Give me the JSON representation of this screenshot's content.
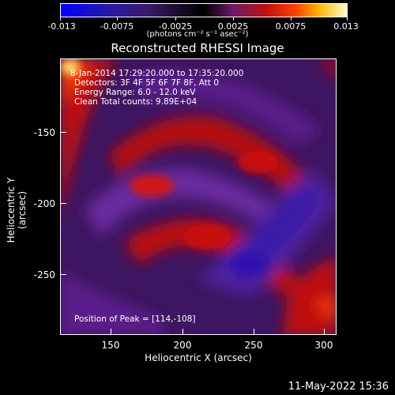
{
  "colorbar": {
    "ticks": [
      "-0.013",
      "-0.0075",
      "-0.0025",
      "0.0025",
      "0.0075",
      "0.013"
    ],
    "units": "(photons cm⁻² s⁻¹ asec⁻²)"
  },
  "title": "Reconstructed RHESSI Image",
  "annotations": {
    "time": "8-Jan-2014 17:29:20.000 to 17:35:20.000",
    "detectors": "Detectors: 3F 4F 5F 6F 7F 8F, Att 0",
    "energy": "Energy Range: 6.0 - 12.0 keV",
    "clean": "Clean    Total counts: 9.89E+04",
    "peak": "Position of Peak = [114,-108]"
  },
  "axes": {
    "xlabel": "Heliocentric X (arcsec)",
    "ylabel": "Heliocentric Y (arcsec)",
    "xticks": [
      "150",
      "200",
      "250",
      "300"
    ],
    "yticks": [
      "-150",
      "-200",
      "-250"
    ]
  },
  "footer": {
    "date": "11-May-2022 15:36"
  },
  "colors": {
    "negative": "#0000ff",
    "neutral": "#000000",
    "positive_low": "#5a1a9a",
    "positive_mid": "#cc1100",
    "positive_high": "#ffffff"
  }
}
